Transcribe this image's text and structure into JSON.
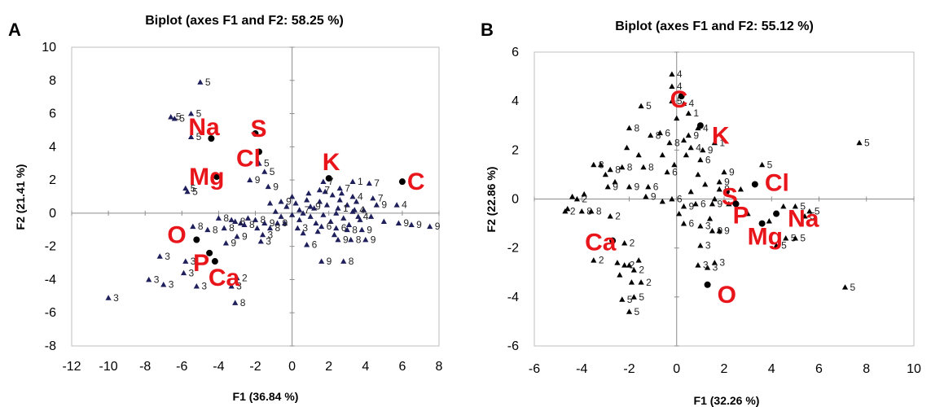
{
  "chart_data": [
    {
      "panel": "A",
      "type": "scatter",
      "title": "Biplot (axes F1 and F2: 58.25 %)",
      "xlabel": "F1 (36.84 %)",
      "ylabel": "F2 (21.41 %)",
      "xlim": [
        -12,
        8
      ],
      "ylim": [
        -8,
        10
      ],
      "xticks": [
        -12,
        -10,
        -8,
        -6,
        -4,
        -2,
        0,
        2,
        4,
        6,
        8
      ],
      "yticks": [
        -8,
        -6,
        -4,
        -2,
        0,
        2,
        4,
        6,
        8,
        10
      ],
      "marker_color": "#1f1f5c",
      "variable_color": "#e8151b",
      "variables": [
        {
          "label": "Na",
          "x": -4.4,
          "y": 4.5
        },
        {
          "label": "S",
          "x": -2.0,
          "y": 4.8
        },
        {
          "label": "Cl",
          "x": -1.8,
          "y": 3.7
        },
        {
          "label": "Mg",
          "x": -4.1,
          "y": 2.2
        },
        {
          "label": "K",
          "x": 2.0,
          "y": 2.1
        },
        {
          "label": "C",
          "x": 6.0,
          "y": 1.9
        },
        {
          "label": "O",
          "x": -5.2,
          "y": -1.6
        },
        {
          "label": "P",
          "x": -4.5,
          "y": -2.4
        },
        {
          "label": "Ca",
          "x": -4.2,
          "y": -2.9
        }
      ],
      "observations": [
        {
          "x": -5.0,
          "y": 7.9,
          "label": "5"
        },
        {
          "x": -6.6,
          "y": 5.8,
          "label": "5"
        },
        {
          "x": -6.4,
          "y": 5.7,
          "label": "5"
        },
        {
          "x": -5.5,
          "y": 6.0,
          "label": "5"
        },
        {
          "x": -5.5,
          "y": 4.6,
          "label": "5"
        },
        {
          "x": -1.8,
          "y": 3.0,
          "label": "5"
        },
        {
          "x": -1.5,
          "y": 2.5,
          "label": "5"
        },
        {
          "x": -5.8,
          "y": 1.5,
          "label": "5"
        },
        {
          "x": -5.7,
          "y": 1.3,
          "label": "5"
        },
        {
          "x": -2.3,
          "y": 2.0,
          "label": "9"
        },
        {
          "x": -1.3,
          "y": 1.6,
          "label": "9"
        },
        {
          "x": -0.6,
          "y": 0.7,
          "label": "9"
        },
        {
          "x": 1.5,
          "y": 1.4,
          "label": "7"
        },
        {
          "x": 1.7,
          "y": 1.9,
          "label": "7"
        },
        {
          "x": 2.6,
          "y": 1.5,
          "label": "7"
        },
        {
          "x": 3.3,
          "y": 1.9,
          "label": "1"
        },
        {
          "x": 4.2,
          "y": 1.8,
          "label": "7"
        },
        {
          "x": 3.3,
          "y": 1.0,
          "label": "4"
        },
        {
          "x": 4.4,
          "y": 0.9,
          "label": "7"
        },
        {
          "x": 4.6,
          "y": 0.5,
          "label": "9"
        },
        {
          "x": 5.7,
          "y": 0.5,
          "label": "4"
        },
        {
          "x": -4.0,
          "y": -0.3,
          "label": "8"
        },
        {
          "x": -3.1,
          "y": -0.5,
          "label": "8"
        },
        {
          "x": -2.0,
          "y": -0.4,
          "label": "8"
        },
        {
          "x": -1.5,
          "y": -0.6,
          "label": "9"
        },
        {
          "x": -0.8,
          "y": -0.6,
          "label": "9"
        },
        {
          "x": 0.4,
          "y": 0.2,
          "label": "7"
        },
        {
          "x": 1.0,
          "y": 0.4,
          "label": "9"
        },
        {
          "x": 2.5,
          "y": 0.3,
          "label": "1"
        },
        {
          "x": 3.4,
          "y": 0.2,
          "label": "4"
        },
        {
          "x": 3.6,
          "y": -0.2,
          "label": "4"
        },
        {
          "x": -5.4,
          "y": -0.8,
          "label": "8"
        },
        {
          "x": -4.6,
          "y": -1.0,
          "label": "8"
        },
        {
          "x": -3.7,
          "y": -0.9,
          "label": "8"
        },
        {
          "x": -2.6,
          "y": -0.7,
          "label": "8"
        },
        {
          "x": -3.0,
          "y": -1.4,
          "label": "9"
        },
        {
          "x": -1.6,
          "y": -1.3,
          "label": "3"
        },
        {
          "x": -1.2,
          "y": -0.9,
          "label": "8"
        },
        {
          "x": -3.6,
          "y": -1.8,
          "label": "9"
        },
        {
          "x": -1.7,
          "y": -1.7,
          "label": "3"
        },
        {
          "x": 0.3,
          "y": -0.9,
          "label": "3"
        },
        {
          "x": 1.6,
          "y": -0.8,
          "label": "6"
        },
        {
          "x": 2.4,
          "y": -0.9,
          "label": "6"
        },
        {
          "x": 3.0,
          "y": -1.0,
          "label": "8"
        },
        {
          "x": 3.8,
          "y": -1.0,
          "label": "9"
        },
        {
          "x": 5.8,
          "y": -0.6,
          "label": "9"
        },
        {
          "x": 6.5,
          "y": -0.7,
          "label": "9"
        },
        {
          "x": 7.5,
          "y": -0.8,
          "label": "9"
        },
        {
          "x": 2.5,
          "y": -1.6,
          "label": "9"
        },
        {
          "x": 3.2,
          "y": -1.6,
          "label": "8"
        },
        {
          "x": 4.0,
          "y": -1.6,
          "label": "9"
        },
        {
          "x": 0.8,
          "y": -1.9,
          "label": "6"
        },
        {
          "x": 1.6,
          "y": -2.9,
          "label": "9"
        },
        {
          "x": 2.8,
          "y": -2.9,
          "label": "8"
        },
        {
          "x": -7.2,
          "y": -2.6,
          "label": "3"
        },
        {
          "x": -5.8,
          "y": -2.9,
          "label": "3"
        },
        {
          "x": -5.9,
          "y": -3.6,
          "label": "3"
        },
        {
          "x": -7.8,
          "y": -4.0,
          "label": "3"
        },
        {
          "x": -7.0,
          "y": -4.3,
          "label": "3"
        },
        {
          "x": -5.2,
          "y": -4.4,
          "label": "3"
        },
        {
          "x": -3.3,
          "y": -4.4,
          "label": "3"
        },
        {
          "x": -3.0,
          "y": -3.9,
          "label": "2"
        },
        {
          "x": -10.0,
          "y": -5.1,
          "label": "3"
        },
        {
          "x": -3.1,
          "y": -5.4,
          "label": "8"
        }
      ],
      "cluster_markers": [
        {
          "x": -1.2,
          "y": 0.6
        },
        {
          "x": -0.9,
          "y": 0.1
        },
        {
          "x": -0.6,
          "y": -0.2
        },
        {
          "x": -0.3,
          "y": 0.4
        },
        {
          "x": 0.0,
          "y": -0.1
        },
        {
          "x": 0.2,
          "y": 0.6
        },
        {
          "x": 0.4,
          "y": -0.4
        },
        {
          "x": 0.6,
          "y": 0.0
        },
        {
          "x": 0.8,
          "y": 0.8
        },
        {
          "x": 1.0,
          "y": -0.2
        },
        {
          "x": 1.2,
          "y": 0.3
        },
        {
          "x": 1.3,
          "y": -0.6
        },
        {
          "x": 1.5,
          "y": 0.7
        },
        {
          "x": 1.7,
          "y": -0.1
        },
        {
          "x": 1.9,
          "y": 0.5
        },
        {
          "x": 2.1,
          "y": -0.5
        },
        {
          "x": 2.2,
          "y": 1.1
        },
        {
          "x": 2.4,
          "y": 0.0
        },
        {
          "x": 2.6,
          "y": 0.8
        },
        {
          "x": 2.8,
          "y": -0.3
        },
        {
          "x": 3.0,
          "y": 0.5
        },
        {
          "x": 3.1,
          "y": -0.7
        },
        {
          "x": 3.3,
          "y": 0.1
        },
        {
          "x": 3.5,
          "y": 0.7
        },
        {
          "x": 3.7,
          "y": -0.4
        },
        {
          "x": 3.9,
          "y": 0.2
        },
        {
          "x": 0.0,
          "y": 1.0
        },
        {
          "x": -0.4,
          "y": -0.6
        },
        {
          "x": 0.9,
          "y": 1.2
        },
        {
          "x": 1.8,
          "y": 1.3
        },
        {
          "x": 2.7,
          "y": 1.2
        },
        {
          "x": -2.4,
          "y": -0.3
        },
        {
          "x": -2.8,
          "y": -0.6
        },
        {
          "x": -3.3,
          "y": -0.4
        },
        {
          "x": -1.9,
          "y": -0.9
        },
        {
          "x": 4.3,
          "y": -0.2
        },
        {
          "x": 5.0,
          "y": -0.5
        },
        {
          "x": 0.6,
          "y": -1.2
        },
        {
          "x": 1.4,
          "y": -1.1
        },
        {
          "x": 2.3,
          "y": -1.3
        }
      ]
    },
    {
      "panel": "B",
      "type": "scatter",
      "title": "Biplot (axes F1 and F2: 55.12 %)",
      "xlabel": "F1 (32.26 %)",
      "ylabel": "F2 (22.86 %)",
      "xlim": [
        -6,
        10
      ],
      "ylim": [
        -6,
        6
      ],
      "xticks": [
        -6,
        -4,
        -2,
        0,
        2,
        4,
        6,
        8,
        10
      ],
      "yticks": [
        -6,
        -4,
        -2,
        0,
        2,
        4,
        6
      ],
      "marker_color": "#000000",
      "variable_color": "#e8151b",
      "variables": [
        {
          "label": "C",
          "x": 0.2,
          "y": 4.2
        },
        {
          "label": "K",
          "x": 1.0,
          "y": 3.0
        },
        {
          "label": "Cl",
          "x": 3.3,
          "y": 0.6
        },
        {
          "label": "S",
          "x": 2.1,
          "y": 0.3
        },
        {
          "label": "P",
          "x": 2.5,
          "y": -0.2
        },
        {
          "label": "Na",
          "x": 4.2,
          "y": -0.6
        },
        {
          "label": "Mg",
          "x": 3.6,
          "y": -1.0
        },
        {
          "label": "Ca",
          "x": -2.7,
          "y": -1.7
        },
        {
          "label": "O",
          "x": 1.3,
          "y": -3.5
        }
      ],
      "observations": [
        {
          "x": -0.2,
          "y": 5.1,
          "label": "4"
        },
        {
          "x": -0.2,
          "y": 4.6,
          "label": "4"
        },
        {
          "x": -0.2,
          "y": 4.0,
          "label": "5"
        },
        {
          "x": 0.3,
          "y": 3.9,
          "label": "4"
        },
        {
          "x": 0.5,
          "y": 3.5,
          "label": "1"
        },
        {
          "x": 0.5,
          "y": 2.6,
          "label": "9"
        },
        {
          "x": 0.9,
          "y": 2.9,
          "label": "4"
        },
        {
          "x": 1.6,
          "y": 2.3,
          "label": "1"
        },
        {
          "x": 1.1,
          "y": 2.0,
          "label": "9"
        },
        {
          "x": 0.6,
          "y": 2.1,
          "label": "4"
        },
        {
          "x": 1.0,
          "y": 1.6,
          "label": "6"
        },
        {
          "x": -1.5,
          "y": 3.8,
          "label": "5"
        },
        {
          "x": -2.0,
          "y": 2.9,
          "label": "8"
        },
        {
          "x": -1.1,
          "y": 2.6,
          "label": "8"
        },
        {
          "x": -0.7,
          "y": 2.7,
          "label": "6"
        },
        {
          "x": -0.3,
          "y": 2.3,
          "label": "8"
        },
        {
          "x": -3.5,
          "y": 1.4,
          "label": "8"
        },
        {
          "x": -2.8,
          "y": 1.2,
          "label": "8"
        },
        {
          "x": -2.3,
          "y": 1.3,
          "label": "8"
        },
        {
          "x": -1.4,
          "y": 1.3,
          "label": "8"
        },
        {
          "x": -0.4,
          "y": 1.1,
          "label": "6"
        },
        {
          "x": -2.9,
          "y": 0.5,
          "label": "9"
        },
        {
          "x": -2.0,
          "y": 0.5,
          "label": "9"
        },
        {
          "x": -1.3,
          "y": 0.1,
          "label": "9"
        },
        {
          "x": -1.2,
          "y": 0.5,
          "label": "6"
        },
        {
          "x": -0.2,
          "y": 0.0,
          "label": "6"
        },
        {
          "x": 0.3,
          "y": -0.3,
          "label": "9"
        },
        {
          "x": 0.8,
          "y": -0.2,
          "label": "6"
        },
        {
          "x": 1.5,
          "y": -0.2,
          "label": "9"
        },
        {
          "x": 1.8,
          "y": 0.7,
          "label": "9"
        },
        {
          "x": 2.0,
          "y": 1.1,
          "label": "9"
        },
        {
          "x": 1.8,
          "y": 0.4,
          "label": "8"
        },
        {
          "x": 0.3,
          "y": -1.0,
          "label": "6"
        },
        {
          "x": 1.0,
          "y": -1.1,
          "label": "3"
        },
        {
          "x": 1.5,
          "y": -1.3,
          "label": "9"
        },
        {
          "x": 1.8,
          "y": -1.3,
          "label": "9"
        },
        {
          "x": -4.2,
          "y": 0.0,
          "label": "2"
        },
        {
          "x": -4.7,
          "y": -0.5,
          "label": "2"
        },
        {
          "x": -4.0,
          "y": -0.5,
          "label": "8"
        },
        {
          "x": -3.6,
          "y": -0.5,
          "label": "8"
        },
        {
          "x": -2.8,
          "y": -0.7,
          "label": "2"
        },
        {
          "x": -2.2,
          "y": -1.8,
          "label": "2"
        },
        {
          "x": -3.5,
          "y": -2.5,
          "label": "2"
        },
        {
          "x": -2.2,
          "y": -2.7,
          "label": "2"
        },
        {
          "x": -1.8,
          "y": -2.9,
          "label": "2"
        },
        {
          "x": -1.5,
          "y": -3.4,
          "label": "2"
        },
        {
          "x": -2.3,
          "y": -4.1,
          "label": "5"
        },
        {
          "x": -1.8,
          "y": -4.0,
          "label": "5"
        },
        {
          "x": -2.0,
          "y": -4.6,
          "label": "5"
        },
        {
          "x": 1.0,
          "y": -1.9,
          "label": "3"
        },
        {
          "x": 1.6,
          "y": -2.6,
          "label": "3"
        },
        {
          "x": 1.3,
          "y": -2.8,
          "label": "3"
        },
        {
          "x": 0.9,
          "y": -2.7,
          "label": "3"
        },
        {
          "x": 4.2,
          "y": -1.9,
          "label": "5"
        },
        {
          "x": 4.6,
          "y": -1.6,
          "label": "5"
        },
        {
          "x": 5.0,
          "y": -1.6,
          "label": "5"
        },
        {
          "x": 5.0,
          "y": -0.3,
          "label": "5"
        },
        {
          "x": 5.4,
          "y": -0.7,
          "label": "5"
        },
        {
          "x": 5.6,
          "y": -0.5,
          "label": "5"
        },
        {
          "x": 7.7,
          "y": 2.3,
          "label": "5"
        },
        {
          "x": 7.1,
          "y": -3.6,
          "label": "5"
        },
        {
          "x": 3.6,
          "y": 1.4,
          "label": "5"
        }
      ],
      "cluster_markers": [
        {
          "x": -4.4,
          "y": 0.1
        },
        {
          "x": -4.6,
          "y": -0.4
        },
        {
          "x": -3.9,
          "y": 0.2
        },
        {
          "x": -3.2,
          "y": 1.4
        },
        {
          "x": -3.0,
          "y": 1.0
        },
        {
          "x": -2.6,
          "y": 0.7
        },
        {
          "x": -2.5,
          "y": -2.6
        },
        {
          "x": -2.0,
          "y": -2.7
        },
        {
          "x": -1.6,
          "y": -2.5
        },
        {
          "x": -1.9,
          "y": -3.4
        },
        {
          "x": -2.4,
          "y": -3.1
        },
        {
          "x": -0.6,
          "y": 1.8
        },
        {
          "x": -0.1,
          "y": 1.4
        },
        {
          "x": 0.4,
          "y": 1.8
        },
        {
          "x": 0.9,
          "y": 1.0
        },
        {
          "x": 1.2,
          "y": 0.6
        },
        {
          "x": 1.6,
          "y": 0.0
        },
        {
          "x": 2.2,
          "y": -0.2
        },
        {
          "x": 2.7,
          "y": 0.4
        },
        {
          "x": 3.0,
          "y": -0.6
        },
        {
          "x": 3.9,
          "y": -0.9
        },
        {
          "x": 4.5,
          "y": -0.3
        },
        {
          "x": 0.1,
          "y": -0.6
        },
        {
          "x": -0.6,
          "y": -0.1
        },
        {
          "x": 0.6,
          "y": 0.3
        },
        {
          "x": 1.4,
          "y": -0.8
        },
        {
          "x": -1.6,
          "y": 1.8
        },
        {
          "x": -2.1,
          "y": 2.1
        },
        {
          "x": 0.0,
          "y": 3.3
        },
        {
          "x": 0.3,
          "y": 2.4
        }
      ]
    }
  ],
  "figure": {
    "panel_letters": [
      "A",
      "B"
    ]
  }
}
